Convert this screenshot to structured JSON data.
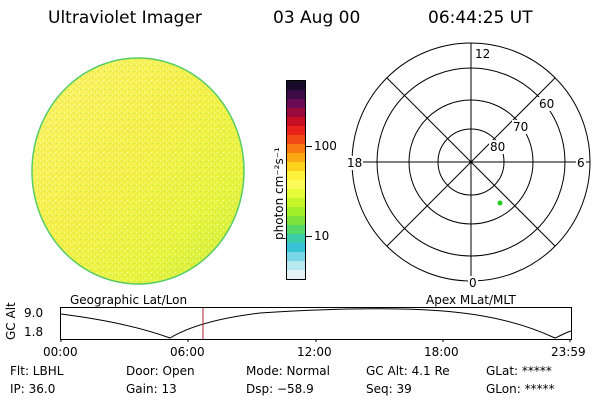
{
  "header": {
    "instrument": "Ultraviolet Imager",
    "date": "03 Aug 00",
    "time": "06:44:25 UT"
  },
  "colorbar": {
    "unit_label": "photon cm⁻²s⁻¹",
    "ticks": [
      "100",
      "10"
    ],
    "colors": [
      "#1a0a2a",
      "#3c0b46",
      "#6a0a52",
      "#9b0a3c",
      "#c70f24",
      "#e8231a",
      "#f24a14",
      "#f77a10",
      "#fba812",
      "#fdd11c",
      "#fff23c",
      "#fbfb5a",
      "#e8fb3a",
      "#c6f52a",
      "#a2ee2a",
      "#7ce23a",
      "#55d86a",
      "#3ccda8",
      "#38c2d8",
      "#78d6e6",
      "#b8e8ef",
      "#e6f3f6"
    ]
  },
  "polar": {
    "mlt_labels": [
      "12",
      "18",
      "6",
      "0"
    ],
    "lat_labels": [
      "60",
      "70",
      "80"
    ],
    "marker_color": "#22cc22"
  },
  "timeline": {
    "y_axis_label": "GC Alt",
    "y_ticks": [
      "9.0",
      "1.8"
    ],
    "left_title": "Geographic Lat/Lon",
    "right_title": "Apex MLat/MLT",
    "x_ticks": [
      "00:00",
      "06:00",
      "12:00",
      "18:00",
      "23:59"
    ],
    "current_time_marker_color": "#b02030"
  },
  "footer": {
    "row1": {
      "flt": "Flt: LBHL",
      "door": "Door: Open",
      "mode": "Mode: Normal",
      "gc_alt": "GC Alt: 4.1 Re",
      "glat": "GLat: *****"
    },
    "row2": {
      "ip": "IP: 36.0",
      "gain": "Gain: 13",
      "dsp": "Dsp:  −58.9",
      "seq": "Seq: 39",
      "glon": "GLon: *****"
    }
  }
}
